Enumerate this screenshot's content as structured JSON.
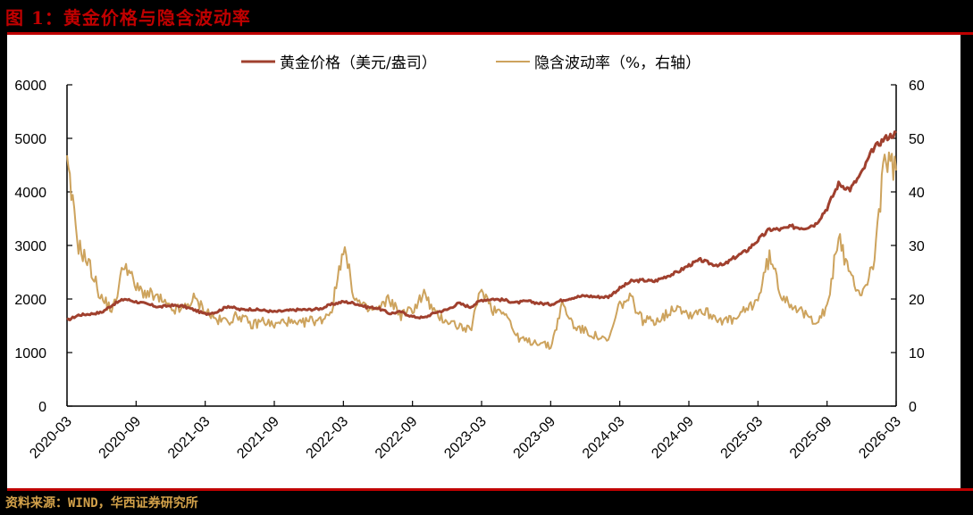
{
  "figure": {
    "title": "图 1：黄金价格与隐含波动率",
    "source": "资料来源：WIND，华西证券研究所",
    "colors": {
      "title_red": "#c00000",
      "gold_price_line": "#a0402e",
      "volatility_line": "#cda35d",
      "source_text": "#d4a24a"
    }
  },
  "chart_data": {
    "type": "line",
    "title": "图 1：黄金价格与隐含波动率",
    "xlabel": "",
    "ylabel_left": "黄金价格（美元/盎司）",
    "ylabel_right": "隐含波动率（%，右轴）",
    "ylim_left": [
      0,
      6000
    ],
    "ylim_right": [
      0,
      60
    ],
    "yticks_left": [
      0,
      1000,
      2000,
      3000,
      4000,
      5000,
      6000
    ],
    "yticks_right": [
      0,
      10,
      20,
      30,
      40,
      50,
      60
    ],
    "xticks": [
      "2020-03",
      "2020-09",
      "2021-03",
      "2021-09",
      "2022-03",
      "2022-09",
      "2023-03",
      "2023-09",
      "2024-03",
      "2024-09",
      "2025-03",
      "2025-09",
      "2026-03"
    ],
    "grid": false,
    "legend_position": "top",
    "x": [
      "2020-03",
      "2020-04",
      "2020-05",
      "2020-06",
      "2020-07",
      "2020-08",
      "2020-09",
      "2020-10",
      "2020-11",
      "2020-12",
      "2021-01",
      "2021-02",
      "2021-03",
      "2021-04",
      "2021-05",
      "2021-06",
      "2021-07",
      "2021-08",
      "2021-09",
      "2021-10",
      "2021-11",
      "2021-12",
      "2022-01",
      "2022-02",
      "2022-03",
      "2022-04",
      "2022-05",
      "2022-06",
      "2022-07",
      "2022-08",
      "2022-09",
      "2022-10",
      "2022-11",
      "2022-12",
      "2023-01",
      "2023-02",
      "2023-03",
      "2023-04",
      "2023-05",
      "2023-06",
      "2023-07",
      "2023-08",
      "2023-09",
      "2023-10",
      "2023-11",
      "2023-12",
      "2024-01",
      "2024-02",
      "2024-03",
      "2024-04",
      "2024-05",
      "2024-06",
      "2024-07",
      "2024-08",
      "2024-09",
      "2024-10",
      "2024-11",
      "2024-12",
      "2025-01",
      "2025-02",
      "2025-03",
      "2025-04",
      "2025-05",
      "2025-06",
      "2025-07",
      "2025-08",
      "2025-09",
      "2025-10",
      "2025-11",
      "2025-12",
      "2026-01",
      "2026-02",
      "2026-03"
    ],
    "series": [
      {
        "name": "黄金价格（美元/盎司）",
        "axis": "left",
        "color": "#a0402e",
        "values": [
          1600,
          1700,
          1720,
          1750,
          1900,
          2000,
          1950,
          1900,
          1850,
          1880,
          1870,
          1800,
          1720,
          1760,
          1870,
          1800,
          1810,
          1790,
          1760,
          1780,
          1800,
          1800,
          1820,
          1900,
          1950,
          1920,
          1850,
          1830,
          1730,
          1760,
          1670,
          1650,
          1750,
          1800,
          1920,
          1850,
          1980,
          2000,
          1980,
          1930,
          1960,
          1920,
          1900,
          1980,
          2030,
          2060,
          2040,
          2040,
          2200,
          2330,
          2350,
          2330,
          2420,
          2500,
          2630,
          2730,
          2650,
          2630,
          2780,
          2900,
          3100,
          3300,
          3300,
          3350,
          3330,
          3400,
          3700,
          4150,
          4050,
          4350,
          4800,
          5000,
          5100
        ]
      },
      {
        "name": "隐含波动率（%，右轴）",
        "axis": "right",
        "color": "#cda35d",
        "values": [
          45,
          30,
          26,
          20,
          18,
          27,
          22,
          21,
          20,
          18,
          18,
          20,
          18,
          16,
          16,
          17,
          15,
          16,
          15,
          16,
          15,
          16,
          16,
          18,
          30,
          20,
          18,
          18,
          20,
          17,
          18,
          21,
          17,
          16,
          15,
          14,
          22,
          18,
          18,
          13,
          12,
          12,
          11,
          19,
          15,
          14,
          13,
          12,
          19,
          20,
          16,
          16,
          17,
          19,
          17,
          18,
          17,
          16,
          16,
          18,
          20,
          28,
          21,
          19,
          17,
          16,
          18,
          32,
          24,
          21,
          26,
          46,
          44
        ]
      }
    ]
  },
  "legend": {
    "items": [
      {
        "label": "黄金价格（美元/盎司）",
        "color": "#a0402e"
      },
      {
        "label": "隐含波动率（%，右轴）",
        "color": "#cda35d"
      }
    ]
  },
  "axes": {
    "left_ticks": [
      "0",
      "1000",
      "2000",
      "3000",
      "4000",
      "5000",
      "6000"
    ],
    "right_ticks": [
      "0",
      "10",
      "20",
      "30",
      "40",
      "50",
      "60"
    ],
    "x_ticks": [
      "2020-03",
      "2020-09",
      "2021-03",
      "2021-09",
      "2022-03",
      "2022-09",
      "2023-03",
      "2023-09",
      "2024-03",
      "2024-09",
      "2025-03",
      "2025-09",
      "2026-03"
    ]
  }
}
